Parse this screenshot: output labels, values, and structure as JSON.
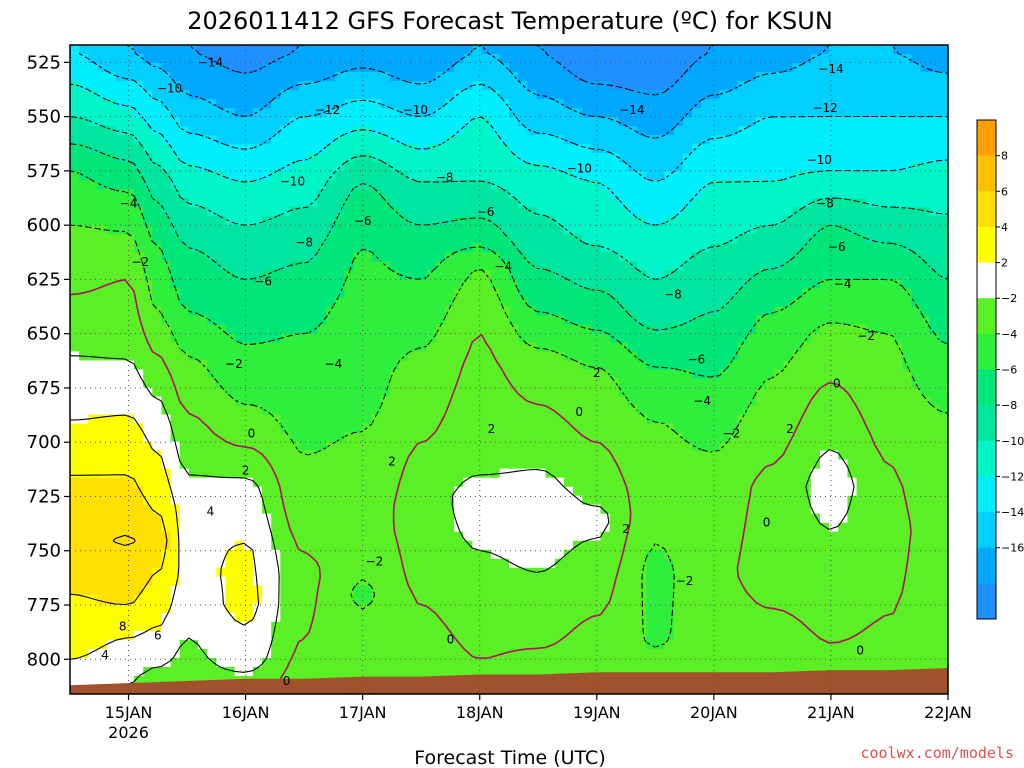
{
  "chart_data": {
    "type": "heatmap",
    "title": "2026011412 GFS Forecast Temperature (ºC) for KSUN",
    "xlabel": "Forecast Time (UTC)",
    "ylabel": "",
    "credit": "coolwx.com/models",
    "x_ticks": [
      {
        "label": "15JAN",
        "sublabel": "2026",
        "day": 15
      },
      {
        "label": "16JAN",
        "sublabel": "",
        "day": 16
      },
      {
        "label": "17JAN",
        "sublabel": "",
        "day": 17
      },
      {
        "label": "18JAN",
        "sublabel": "",
        "day": 18
      },
      {
        "label": "19JAN",
        "sublabel": "",
        "day": 19
      },
      {
        "label": "20JAN",
        "sublabel": "",
        "day": 20
      },
      {
        "label": "21JAN",
        "sublabel": "",
        "day": 21
      },
      {
        "label": "22JAN",
        "sublabel": "",
        "day": 22
      }
    ],
    "xlim": [
      14.5,
      22.0
    ],
    "y_ticks": [
      525,
      550,
      575,
      600,
      625,
      650,
      675,
      700,
      725,
      750,
      775,
      800
    ],
    "ylim": [
      517,
      816
    ],
    "y_axis_reversed": true,
    "colorbar": {
      "levels": [
        -18,
        -16,
        -14,
        -12,
        -10,
        -8,
        -6,
        -4,
        -2,
        2,
        4,
        6,
        8,
        10
      ],
      "tick_labels": [
        "8",
        "6",
        "4",
        "2",
        "−2",
        "−4",
        "−6",
        "−8",
        "−10",
        "−12",
        "−14",
        "−16"
      ],
      "colors": [
        "#1e90ff",
        "#00a8ff",
        "#00cfff",
        "#00efff",
        "#00f5c8",
        "#00e6a0",
        "#00e678",
        "#2ef03c",
        "#5af025",
        "#ffffff",
        "#ffff00",
        "#ffe000",
        "#ffc000",
        "#ffa000"
      ]
    },
    "profiles": [
      {
        "day": 14.5,
        "t": [
          [
            520,
            -12
          ],
          [
            550,
            -8
          ],
          [
            575,
            -4
          ],
          [
            600,
            -2
          ],
          [
            640,
            0.5
          ],
          [
            660,
            2
          ],
          [
            690,
            4
          ],
          [
            715,
            6
          ],
          [
            740,
            7.5
          ],
          [
            790,
            5
          ],
          [
            810,
            3
          ]
        ]
      },
      {
        "day": 15.0,
        "t": [
          [
            520,
            -14
          ],
          [
            545,
            -10
          ],
          [
            570,
            -6
          ],
          [
            592,
            -3
          ],
          [
            625,
            0
          ],
          [
            655,
            1.5
          ],
          [
            675,
            3
          ],
          [
            700,
            5
          ],
          [
            730,
            7
          ],
          [
            745,
            8.2
          ],
          [
            775,
            6
          ],
          [
            790,
            4
          ],
          [
            810,
            2
          ]
        ]
      },
      {
        "day": 15.25,
        "t": [
          [
            520,
            -15
          ],
          [
            550,
            -11
          ],
          [
            580,
            -7
          ],
          [
            610,
            -4
          ],
          [
            640,
            -2
          ],
          [
            670,
            1
          ],
          [
            690,
            3
          ],
          [
            720,
            5
          ],
          [
            745,
            7
          ],
          [
            775,
            5
          ],
          [
            795,
            3
          ],
          [
            812,
            1
          ]
        ]
      },
      {
        "day": 15.5,
        "t": [
          [
            520,
            -16
          ],
          [
            550,
            -13
          ],
          [
            580,
            -9
          ],
          [
            610,
            -6
          ],
          [
            640,
            -4
          ],
          [
            660,
            -2
          ],
          [
            700,
            1
          ],
          [
            730,
            3
          ],
          [
            760,
            3.5
          ],
          [
            790,
            2
          ],
          [
            812,
            1
          ]
        ]
      },
      {
        "day": 16.0,
        "t": [
          [
            520,
            -17
          ],
          [
            550,
            -14
          ],
          [
            580,
            -10
          ],
          [
            610,
            -7
          ],
          [
            640,
            -5
          ],
          [
            670,
            -3
          ],
          [
            695,
            -1
          ],
          [
            720,
            2.5
          ],
          [
            750,
            4.2
          ],
          [
            775,
            4.6
          ],
          [
            800,
            3
          ],
          [
            812,
            1
          ]
        ]
      },
      {
        "day": 16.5,
        "t": [
          [
            520,
            -16
          ],
          [
            550,
            -12
          ],
          [
            580,
            -9
          ],
          [
            610,
            -6.5
          ],
          [
            640,
            -4.5
          ],
          [
            670,
            -3
          ],
          [
            700,
            -2.2
          ],
          [
            730,
            -1.2
          ],
          [
            760,
            0.5
          ],
          [
            790,
            0
          ],
          [
            812,
            -1
          ]
        ]
      },
      {
        "day": 17.0,
        "t": [
          [
            520,
            -15
          ],
          [
            550,
            -11
          ],
          [
            580,
            -6
          ],
          [
            610,
            -4
          ],
          [
            650,
            -3
          ],
          [
            680,
            -2.5
          ],
          [
            710,
            -1.5
          ],
          [
            740,
            -1
          ],
          [
            770,
            -2.3
          ],
          [
            800,
            -1
          ],
          [
            812,
            -2.2
          ]
        ]
      },
      {
        "day": 17.5,
        "t": [
          [
            520,
            -16
          ],
          [
            550,
            -12
          ],
          [
            580,
            -8
          ],
          [
            610,
            -5
          ],
          [
            640,
            -3
          ],
          [
            665,
            -1.5
          ],
          [
            700,
            0
          ],
          [
            730,
            1
          ],
          [
            760,
            0.5
          ],
          [
            790,
            -0.5
          ],
          [
            812,
            -1.5
          ]
        ]
      },
      {
        "day": 18.0,
        "t": [
          [
            520,
            -14
          ],
          [
            550,
            -10
          ],
          [
            580,
            -8
          ],
          [
            605,
            -5
          ],
          [
            620,
            -2
          ],
          [
            650,
            0
          ],
          [
            680,
            0.8
          ],
          [
            710,
            1.5
          ],
          [
            725,
            3
          ],
          [
            740,
            2.5
          ],
          [
            770,
            1
          ],
          [
            800,
            0
          ],
          [
            812,
            -1.5
          ]
        ]
      },
      {
        "day": 18.5,
        "t": [
          [
            520,
            -16
          ],
          [
            550,
            -13
          ],
          [
            580,
            -9
          ],
          [
            610,
            -7
          ],
          [
            640,
            -4
          ],
          [
            665,
            -1
          ],
          [
            700,
            1
          ],
          [
            725,
            3
          ],
          [
            750,
            2.5
          ],
          [
            780,
            1
          ],
          [
            810,
            -1
          ]
        ]
      },
      {
        "day": 19.0,
        "t": [
          [
            520,
            -18
          ],
          [
            550,
            -14
          ],
          [
            580,
            -10
          ],
          [
            610,
            -8
          ],
          [
            640,
            -5
          ],
          [
            665,
            -2
          ],
          [
            690,
            -0.5
          ],
          [
            720,
            1
          ],
          [
            735,
            2.6
          ],
          [
            760,
            1
          ],
          [
            790,
            -0.5
          ],
          [
            812,
            -1
          ]
        ]
      },
      {
        "day": 19.5,
        "t": [
          [
            520,
            -18
          ],
          [
            550,
            -15
          ],
          [
            580,
            -12
          ],
          [
            610,
            -9
          ],
          [
            640,
            -7
          ],
          [
            665,
            -4
          ],
          [
            690,
            -2
          ],
          [
            720,
            -1
          ],
          [
            760,
            -2.5
          ],
          [
            790,
            -2.2
          ],
          [
            812,
            -1.2
          ]
        ]
      },
      {
        "day": 20.0,
        "t": [
          [
            520,
            -16
          ],
          [
            550,
            -13
          ],
          [
            580,
            -10
          ],
          [
            610,
            -8
          ],
          [
            640,
            -6
          ],
          [
            670,
            -4
          ],
          [
            695,
            -2.5
          ],
          [
            720,
            -1.2
          ],
          [
            760,
            -0.5
          ],
          [
            790,
            -1
          ],
          [
            812,
            -1
          ]
        ]
      },
      {
        "day": 20.5,
        "t": [
          [
            520,
            -15
          ],
          [
            550,
            -12
          ],
          [
            580,
            -10
          ],
          [
            610,
            -7
          ],
          [
            640,
            -4
          ],
          [
            660,
            -2.5
          ],
          [
            690,
            -1
          ],
          [
            720,
            0.5
          ],
          [
            760,
            1
          ],
          [
            790,
            -0.8
          ],
          [
            812,
            -1.5
          ]
        ]
      },
      {
        "day": 21.0,
        "t": [
          [
            520,
            -14
          ],
          [
            550,
            -12
          ],
          [
            575,
            -10
          ],
          [
            600,
            -6
          ],
          [
            625,
            -4
          ],
          [
            650,
            -1.5
          ],
          [
            680,
            0.5
          ],
          [
            700,
            1.8
          ],
          [
            720,
            3
          ],
          [
            740,
            2
          ],
          [
            780,
            0.5
          ],
          [
            805,
            -0.5
          ],
          [
            812,
            -1
          ]
        ]
      },
      {
        "day": 21.5,
        "t": [
          [
            520,
            -14
          ],
          [
            550,
            -12
          ],
          [
            575,
            -10
          ],
          [
            600,
            -7
          ],
          [
            625,
            -4
          ],
          [
            650,
            -2
          ],
          [
            680,
            -1.2
          ],
          [
            710,
            0
          ],
          [
            740,
            0.5
          ],
          [
            780,
            0
          ],
          [
            800,
            -0.5
          ],
          [
            812,
            -1
          ]
        ]
      },
      {
        "day": 22.0,
        "t": [
          [
            520,
            -15
          ],
          [
            550,
            -12
          ],
          [
            580,
            -9
          ],
          [
            610,
            -7
          ],
          [
            640,
            -5
          ],
          [
            670,
            -3
          ],
          [
            690,
            -1.8
          ],
          [
            720,
            -1.2
          ],
          [
            760,
            -1
          ],
          [
            790,
            -1
          ],
          [
            812,
            -1
          ]
        ]
      }
    ],
    "terrain_pressure": [
      [
        14.5,
        812
      ],
      [
        15.0,
        811
      ],
      [
        15.5,
        810
      ],
      [
        16.0,
        809
      ],
      [
        16.5,
        809
      ],
      [
        17.0,
        808
      ],
      [
        17.5,
        808
      ],
      [
        18.0,
        807
      ],
      [
        18.5,
        807
      ],
      [
        19.0,
        806
      ],
      [
        19.5,
        806
      ],
      [
        20.0,
        806
      ],
      [
        20.5,
        806
      ],
      [
        21.0,
        805
      ],
      [
        21.5,
        805
      ],
      [
        22.0,
        804
      ]
    ],
    "contour_labels": [
      {
        "text": "−14",
        "day": 15.7,
        "p": 525
      },
      {
        "text": "−10",
        "day": 15.35,
        "p": 537
      },
      {
        "text": "−12",
        "day": 16.7,
        "p": 547
      },
      {
        "text": "−10",
        "day": 17.45,
        "p": 547
      },
      {
        "text": "−14",
        "day": 19.3,
        "p": 547
      },
      {
        "text": "−14",
        "day": 21.0,
        "p": 528
      },
      {
        "text": "−12",
        "day": 20.95,
        "p": 546
      },
      {
        "text": "−10",
        "day": 20.9,
        "p": 570
      },
      {
        "text": "−10",
        "day": 16.4,
        "p": 580
      },
      {
        "text": "−8",
        "day": 17.7,
        "p": 578
      },
      {
        "text": "−10",
        "day": 18.85,
        "p": 574
      },
      {
        "text": "−8",
        "day": 20.95,
        "p": 590
      },
      {
        "text": "−4",
        "day": 15.0,
        "p": 590
      },
      {
        "text": "−6",
        "day": 17.0,
        "p": 598
      },
      {
        "text": "−6",
        "day": 18.05,
        "p": 594
      },
      {
        "text": "−8",
        "day": 16.5,
        "p": 608
      },
      {
        "text": "−6",
        "day": 21.05,
        "p": 610
      },
      {
        "text": "−2",
        "day": 15.1,
        "p": 617
      },
      {
        "text": "−4",
        "day": 18.2,
        "p": 619
      },
      {
        "text": "−4",
        "day": 21.1,
        "p": 627
      },
      {
        "text": "−6",
        "day": 16.15,
        "p": 626
      },
      {
        "text": "−8",
        "day": 19.65,
        "p": 632
      },
      {
        "text": "−2",
        "day": 21.3,
        "p": 651
      },
      {
        "text": "−2",
        "day": 15.9,
        "p": 664
      },
      {
        "text": "−4",
        "day": 16.75,
        "p": 664
      },
      {
        "text": "−6",
        "day": 19.85,
        "p": 662
      },
      {
        "text": "2",
        "day": 19.0,
        "p": 668
      },
      {
        "text": "0",
        "day": 21.05,
        "p": 673
      },
      {
        "text": "−4",
        "day": 19.9,
        "p": 681
      },
      {
        "text": "0",
        "day": 18.85,
        "p": 686
      },
      {
        "text": "2",
        "day": 20.65,
        "p": 694
      },
      {
        "text": "2",
        "day": 18.1,
        "p": 694
      },
      {
        "text": "0",
        "day": 16.05,
        "p": 696
      },
      {
        "text": "−2",
        "day": 20.15,
        "p": 696
      },
      {
        "text": "2",
        "day": 17.25,
        "p": 709
      },
      {
        "text": "2",
        "day": 16.0,
        "p": 713
      },
      {
        "text": "4",
        "day": 15.7,
        "p": 732
      },
      {
        "text": "0",
        "day": 20.45,
        "p": 737
      },
      {
        "text": "2",
        "day": 19.25,
        "p": 740
      },
      {
        "text": "−2",
        "day": 17.1,
        "p": 755
      },
      {
        "text": "−2",
        "day": 19.75,
        "p": 764
      },
      {
        "text": "8",
        "day": 14.95,
        "p": 785
      },
      {
        "text": "6",
        "day": 15.25,
        "p": 789
      },
      {
        "text": "4",
        "day": 14.8,
        "p": 798
      },
      {
        "text": "0",
        "day": 17.75,
        "p": 791
      },
      {
        "text": "0",
        "day": 21.25,
        "p": 796
      },
      {
        "text": "0",
        "day": 16.35,
        "p": 810
      }
    ]
  }
}
